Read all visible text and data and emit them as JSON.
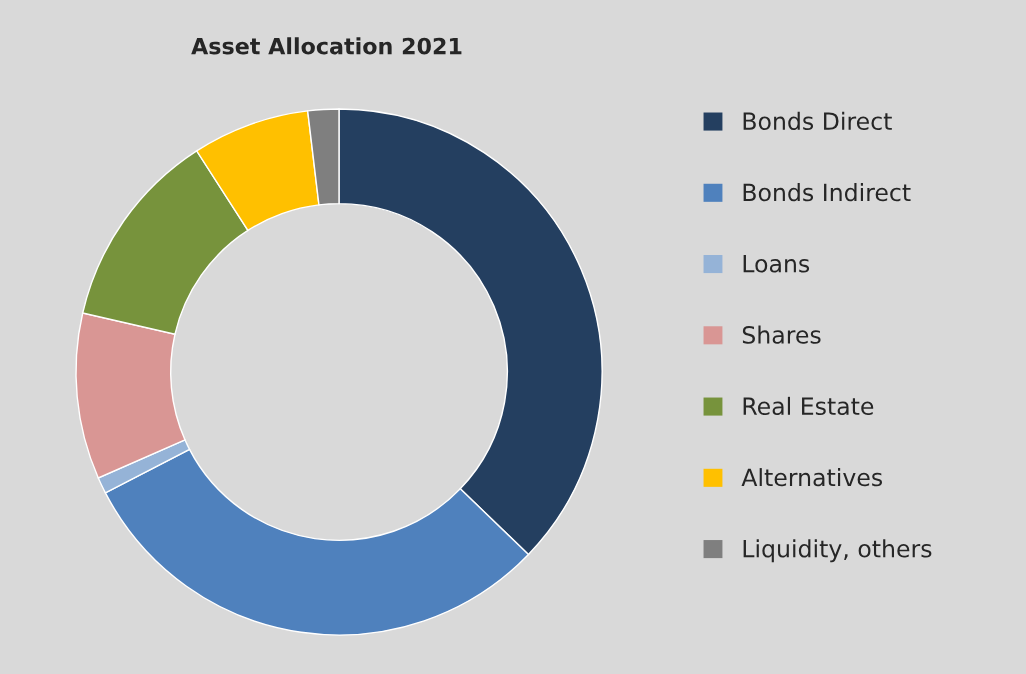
{
  "chart_data": {
    "type": "donut",
    "title": "Asset Allocation 2021",
    "categories": [
      "Bonds Direct",
      "Bonds Indirect",
      "Loans",
      "Shares",
      "Real Estate",
      "Alternatives",
      "Liquidity, others"
    ],
    "values": [
      37.2,
      30.2,
      1.0,
      10.2,
      12.3,
      7.2,
      1.9
    ],
    "colors": [
      "#243f60",
      "#4f81bd",
      "#95b3d7",
      "#d99694",
      "#77933c",
      "#ffc000",
      "#7f7f7f"
    ],
    "legend": "right"
  }
}
